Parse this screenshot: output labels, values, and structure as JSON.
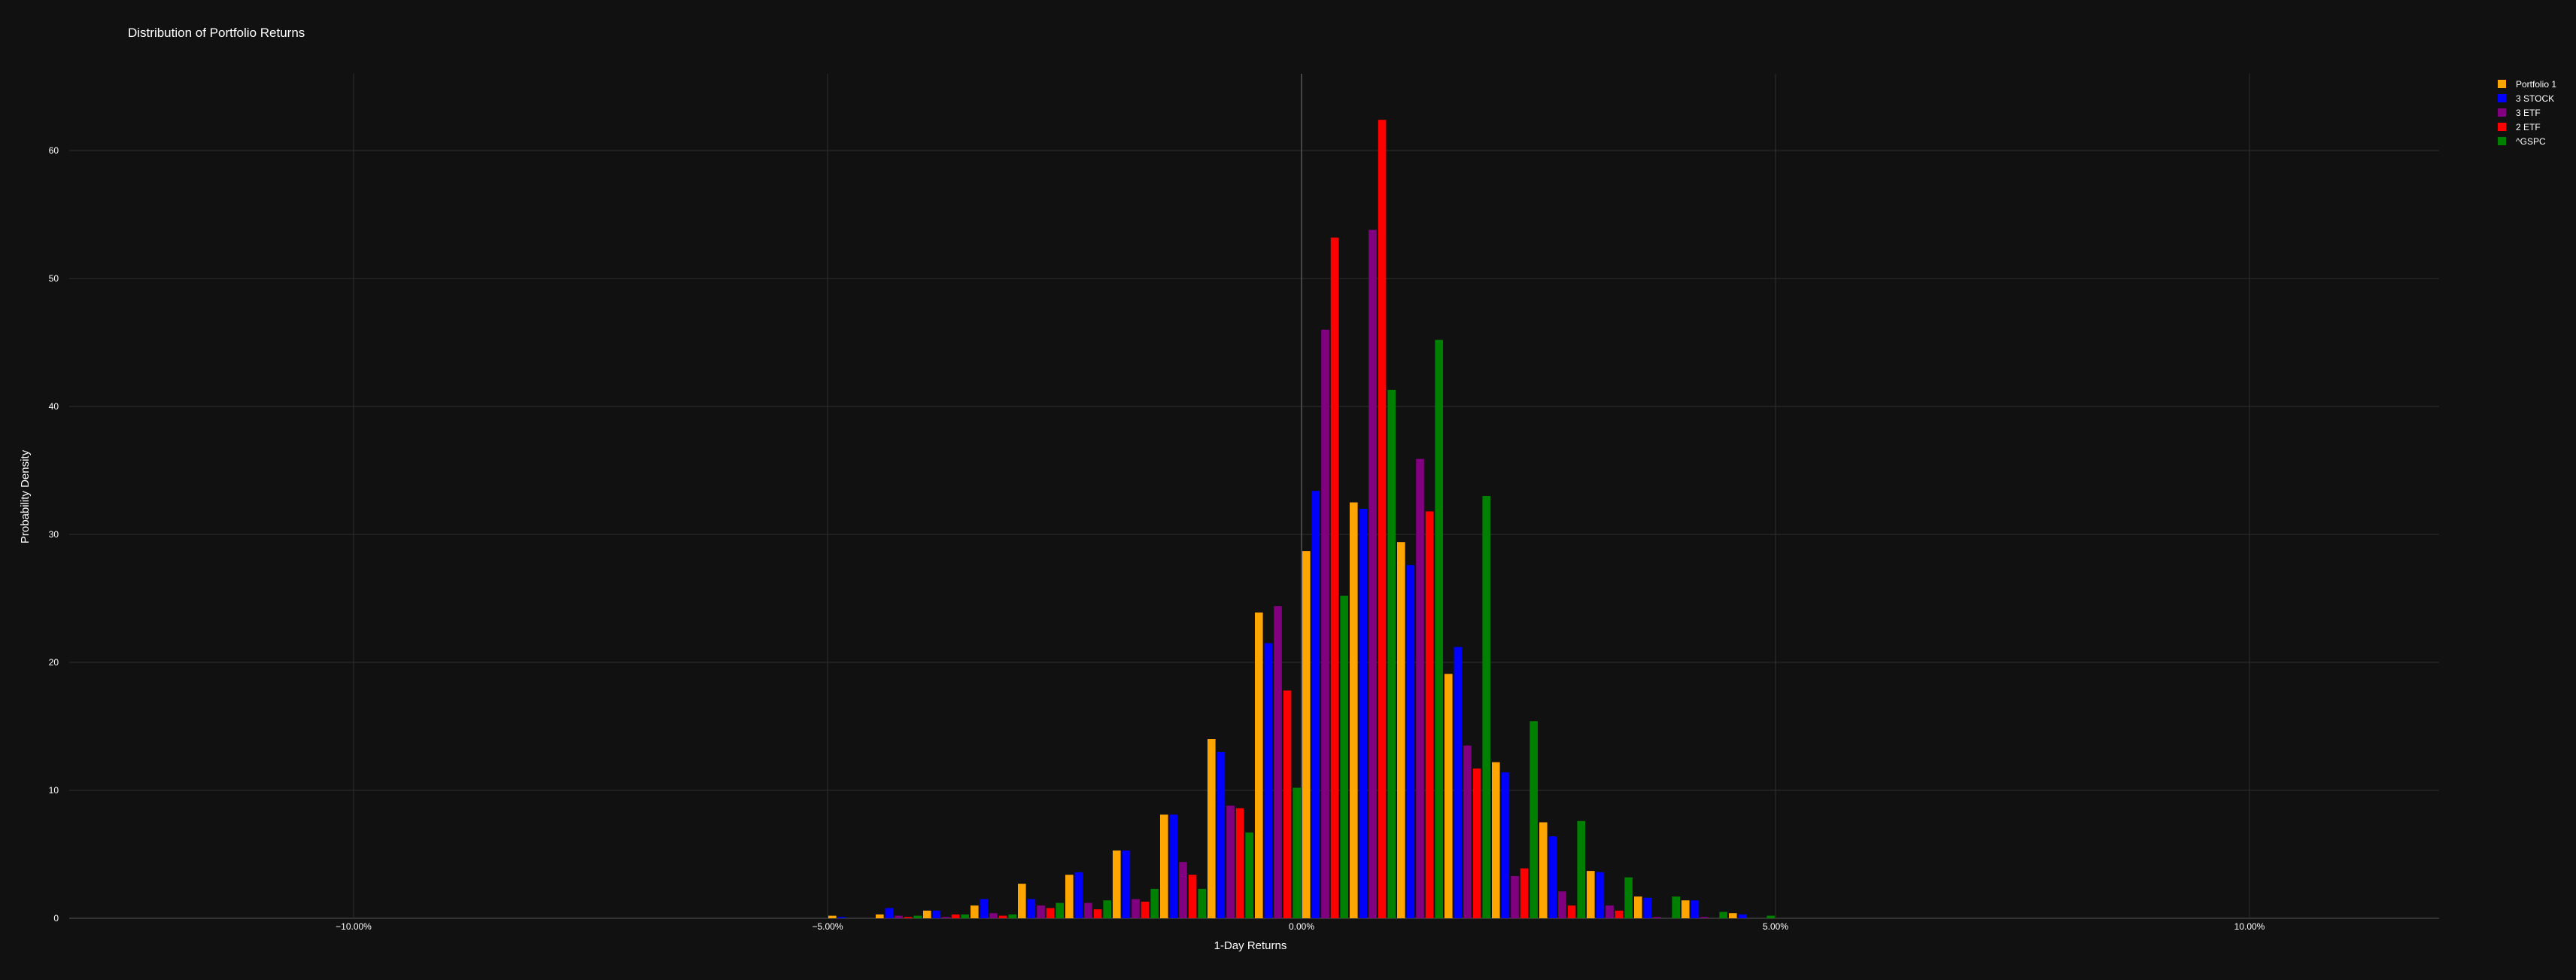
{
  "chart_data": {
    "type": "bar",
    "title": "Distribution of Portfolio Returns",
    "xlabel": "1-Day Returns",
    "ylabel": "Probability Density",
    "xlim": [
      -0.13,
      0.12
    ],
    "ylim": [
      0,
      66
    ],
    "x_ticks": [
      -0.1,
      -0.05,
      0.0,
      0.05,
      0.1
    ],
    "x_tick_labels": [
      "−10.00%",
      "−5.00%",
      "0.00%",
      "5.00%",
      "10.00%"
    ],
    "y_ticks": [
      0,
      10,
      20,
      30,
      40,
      50,
      60
    ],
    "y_tick_labels": [
      "0",
      "10",
      "20",
      "30",
      "40",
      "50",
      "60"
    ],
    "grid": true,
    "legend_position": "top-right",
    "bin_width": 0.005,
    "bin_centers": [
      -0.0475,
      -0.0425,
      -0.0375,
      -0.0325,
      -0.0275,
      -0.0225,
      -0.0175,
      -0.0125,
      -0.0075,
      -0.0025,
      0.0025,
      0.0075,
      0.0125,
      0.0175,
      0.0225,
      0.0275,
      0.0325,
      0.0375,
      0.0425,
      0.0475
    ],
    "series": [
      {
        "name": "Portfolio 1",
        "color": "#FFA500",
        "values": [
          0.2,
          0.3,
          0.6,
          1.0,
          2.7,
          3.4,
          5.3,
          8.1,
          14.0,
          23.9,
          28.7,
          32.5,
          29.4,
          19.1,
          12.2,
          7.5,
          3.7,
          1.7,
          1.4,
          0.4
        ]
      },
      {
        "name": "3 STOCK",
        "color": "#0000FF",
        "values": [
          0.1,
          0.8,
          0.6,
          1.5,
          1.5,
          3.6,
          5.3,
          8.1,
          13.0,
          21.5,
          33.4,
          32.0,
          27.6,
          21.2,
          11.4,
          6.4,
          3.6,
          1.6,
          1.4,
          0.3
        ]
      },
      {
        "name": "3 ETF",
        "color": "#800080",
        "values": [
          0.0,
          0.2,
          0.1,
          0.4,
          1.0,
          1.2,
          1.5,
          4.4,
          8.8,
          24.4,
          46.0,
          53.8,
          35.9,
          13.5,
          3.3,
          2.1,
          1.0,
          0.1,
          0.1,
          0.0
        ]
      },
      {
        "name": "2 ETF",
        "color": "#FF0000",
        "values": [
          0.0,
          0.1,
          0.3,
          0.2,
          0.8,
          0.7,
          1.3,
          3.4,
          8.6,
          17.8,
          53.2,
          62.4,
          31.8,
          11.7,
          3.9,
          1.0,
          0.6,
          0.0,
          0.0,
          0.0
        ]
      },
      {
        "name": "^GSPC",
        "color": "#008000",
        "values": [
          0.0,
          0.2,
          0.3,
          0.3,
          1.2,
          1.4,
          2.3,
          2.3,
          6.7,
          10.2,
          25.2,
          41.3,
          45.2,
          33.0,
          15.4,
          7.6,
          3.2,
          1.7,
          0.5,
          0.2
        ]
      }
    ]
  }
}
